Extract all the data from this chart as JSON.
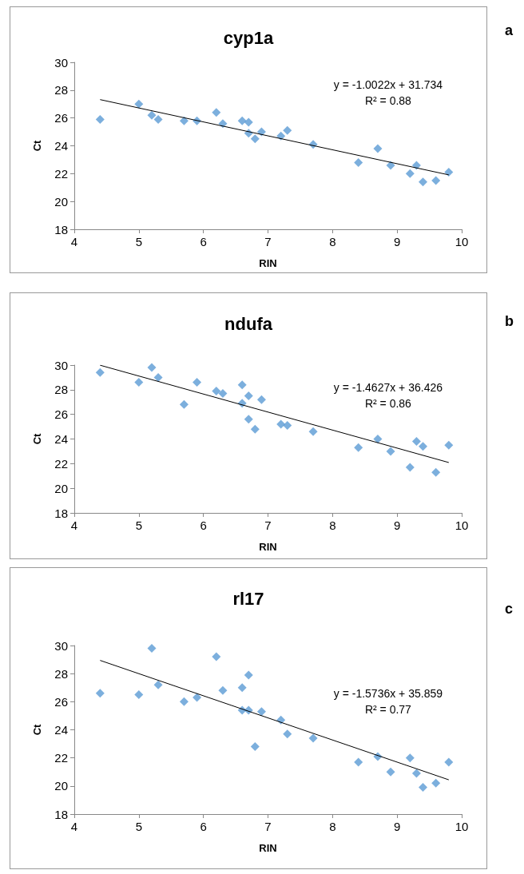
{
  "chart_data": [
    {
      "type": "scatter",
      "title": "cyp1a",
      "xlabel": "RIN",
      "ylabel": "Ct",
      "xlim": [
        4,
        10
      ],
      "xticks": [
        4,
        5,
        6,
        7,
        8,
        9,
        10
      ],
      "ylim": [
        18,
        30
      ],
      "yticks": [
        18,
        20,
        22,
        24,
        26,
        28,
        30
      ],
      "grid": false,
      "annotations": [
        "y = -1.0022x + 31.734",
        "R² = 0.88",
        "a"
      ],
      "series": [
        {
          "marker": "diamond",
          "color": "#5b9bd5",
          "x": [
            4.4,
            5,
            5.2,
            5.3,
            5.7,
            5.9,
            6.2,
            6.3,
            6.6,
            6.7,
            6.7,
            6.8,
            6.9,
            7.2,
            7.3,
            7.7,
            8.4,
            8.7,
            8.9,
            9.2,
            9.3,
            9.4,
            9.6,
            9.8
          ],
          "values": [
            25.9,
            27.0,
            26.2,
            25.9,
            25.8,
            25.8,
            26.4,
            25.6,
            25.8,
            25.7,
            24.9,
            24.5,
            25.0,
            24.7,
            25.1,
            24.1,
            22.8,
            23.8,
            22.6,
            22.0,
            22.6,
            21.4,
            21.5,
            22.1
          ]
        },
        {
          "type": "line",
          "marker": "none",
          "color": "#000000",
          "x": [
            4.4,
            9.8
          ],
          "values": [
            27.32,
            21.91
          ]
        }
      ]
    },
    {
      "type": "scatter",
      "title": "ndufa",
      "xlabel": "RIN",
      "ylabel": "Ct",
      "xlim": [
        4,
        10
      ],
      "xticks": [
        4,
        5,
        6,
        7,
        8,
        9,
        10
      ],
      "ylim": [
        18,
        30
      ],
      "yticks": [
        18,
        20,
        22,
        24,
        26,
        28,
        30
      ],
      "grid": false,
      "annotations": [
        "y = -1.4627x + 36.426",
        "R² = 0.86",
        "b"
      ],
      "series": [
        {
          "marker": "diamond",
          "color": "#5b9bd5",
          "x": [
            4.4,
            5,
            5.2,
            5.3,
            5.7,
            5.9,
            6.2,
            6.3,
            6.6,
            6.6,
            6.7,
            6.7,
            6.8,
            6.9,
            7.2,
            7.3,
            7.7,
            8.4,
            8.7,
            8.9,
            9.2,
            9.3,
            9.4,
            9.6,
            9.8
          ],
          "values": [
            29.4,
            28.6,
            29.8,
            29.0,
            26.8,
            28.6,
            27.9,
            27.7,
            28.4,
            26.9,
            27.5,
            25.6,
            24.8,
            27.2,
            25.2,
            25.1,
            24.6,
            23.3,
            24.0,
            23.0,
            21.7,
            23.8,
            23.4,
            21.3,
            23.5
          ]
        },
        {
          "type": "line",
          "marker": "none",
          "color": "#000000",
          "x": [
            4.4,
            9.8
          ],
          "values": [
            29.99,
            22.09
          ]
        }
      ]
    },
    {
      "type": "scatter",
      "title": "rl17",
      "xlabel": "RIN",
      "ylabel": "Ct",
      "xlim": [
        4,
        10
      ],
      "xticks": [
        4,
        5,
        6,
        7,
        8,
        9,
        10
      ],
      "ylim": [
        18,
        30
      ],
      "yticks": [
        18,
        20,
        22,
        24,
        26,
        28,
        30
      ],
      "grid": false,
      "annotations": [
        "y = -1.5736x + 35.859",
        "R² = 0.77",
        "c"
      ],
      "series": [
        {
          "marker": "diamond",
          "color": "#5b9bd5",
          "x": [
            4.4,
            5,
            5.2,
            5.3,
            5.7,
            5.9,
            6.2,
            6.3,
            6.6,
            6.6,
            6.7,
            6.7,
            6.8,
            6.9,
            7.2,
            7.3,
            7.7,
            8.4,
            8.7,
            8.9,
            9.2,
            9.3,
            9.4,
            9.6,
            9.8
          ],
          "values": [
            26.6,
            26.5,
            29.8,
            27.2,
            26.0,
            26.3,
            29.2,
            26.8,
            27.0,
            25.4,
            27.9,
            25.4,
            22.8,
            25.3,
            24.7,
            23.7,
            23.4,
            21.7,
            22.1,
            21.0,
            22.0,
            20.9,
            19.9,
            20.2,
            21.7
          ]
        },
        {
          "type": "line",
          "marker": "none",
          "color": "#000000",
          "x": [
            4.4,
            9.8
          ],
          "values": [
            28.94,
            20.44
          ]
        }
      ]
    }
  ]
}
